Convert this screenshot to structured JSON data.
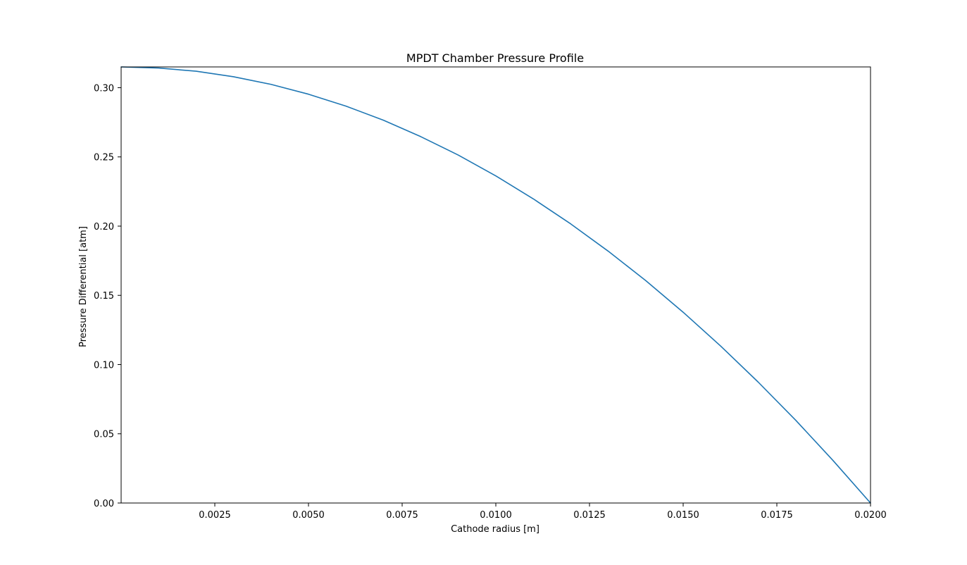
{
  "chart_data": {
    "type": "line",
    "title": "MPDT Chamber Pressure Profile",
    "xlabel": "Cathode radius [m]",
    "ylabel": "Pressure Differential [atm]",
    "xlim": [
      0.0,
      0.02
    ],
    "ylim": [
      0.0,
      0.315
    ],
    "xticks": [
      "0.0025",
      "0.0050",
      "0.0075",
      "0.0100",
      "0.0125",
      "0.0150",
      "0.0175",
      "0.0200"
    ],
    "yticks": [
      "0.00",
      "0.05",
      "0.10",
      "0.15",
      "0.20",
      "0.25",
      "0.30"
    ],
    "grid": false,
    "series": [
      {
        "color": "#1f77b4",
        "x": [
          0.0,
          0.001,
          0.002,
          0.003,
          0.004,
          0.005,
          0.006,
          0.007,
          0.008,
          0.009,
          0.01,
          0.011,
          0.012,
          0.013,
          0.014,
          0.015,
          0.016,
          0.017,
          0.018,
          0.019,
          0.02
        ],
        "y": [
          0.315,
          0.3142,
          0.3119,
          0.3079,
          0.3024,
          0.2953,
          0.2867,
          0.2765,
          0.2646,
          0.2513,
          0.2363,
          0.2197,
          0.2016,
          0.1819,
          0.1607,
          0.1378,
          0.1134,
          0.0874,
          0.0599,
          0.0307,
          0.0
        ]
      }
    ]
  }
}
